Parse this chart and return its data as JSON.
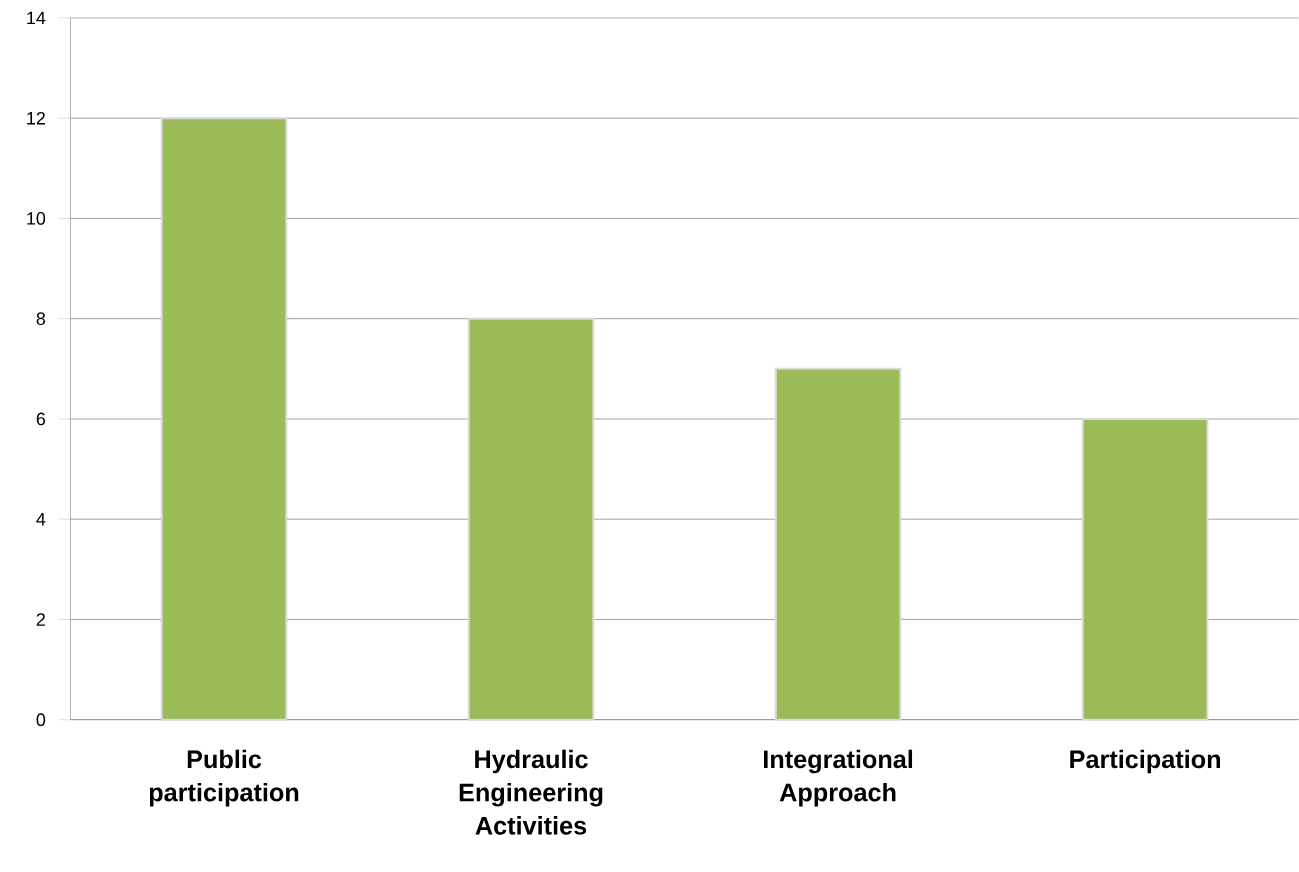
{
  "chart_data": {
    "type": "bar",
    "categories": [
      "Public participation",
      "Hydraulic Engineering Activities",
      "Integrational Approach",
      "Participation"
    ],
    "values": [
      12,
      8,
      7,
      6
    ],
    "color": "#9bbb59",
    "ylim": [
      0,
      14
    ],
    "yticks": [
      0,
      2,
      4,
      6,
      8,
      10,
      12,
      14
    ],
    "grid": "y"
  }
}
